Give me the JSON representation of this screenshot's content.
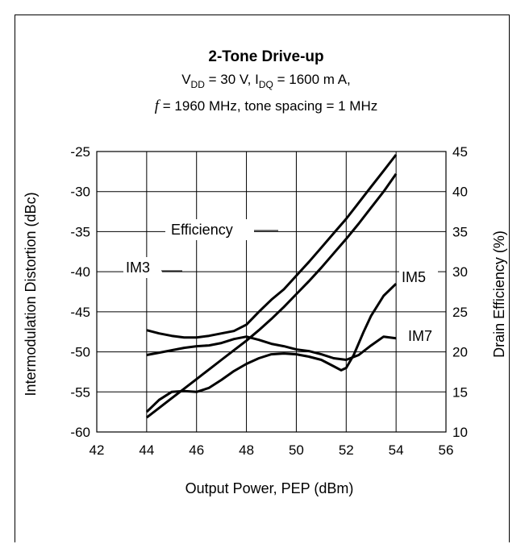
{
  "chart_data": {
    "type": "line",
    "title": "2-Tone Drive-up",
    "subtitle": {
      "line1_parts": [
        "V",
        "DD",
        " = 30 V, I",
        "DQ",
        " = 1600 m A,"
      ],
      "line2_italic": "f",
      "line2_rest": " = 1960 MHz, tone spacing = 1 MHz"
    },
    "xlabel": "Output Power, PEP (dBm)",
    "ylabel_left": "Intermodulation Distortion (dBc)",
    "ylabel_right": "Drain Efficiency (%)",
    "xlim": [
      42,
      56
    ],
    "ylim_left": [
      -60,
      -25
    ],
    "ylim_right": [
      10,
      45
    ],
    "x_ticks": [
      "42",
      "44",
      "46",
      "48",
      "50",
      "52",
      "54",
      "56"
    ],
    "y_ticks_left": [
      "-25",
      "-30",
      "-35",
      "-40",
      "-45",
      "-50",
      "-55",
      "-60"
    ],
    "y_ticks_right": [
      "45",
      "40",
      "35",
      "30",
      "25",
      "20",
      "15",
      "10"
    ],
    "grid": true,
    "series": [
      {
        "name": "IM3",
        "axis": "left",
        "x": [
          44,
          44.5,
          45,
          45.5,
          46,
          46.5,
          47,
          47.5,
          48,
          48.5,
          49,
          49.5,
          50,
          50.5,
          51,
          51.5,
          52,
          52.5,
          53,
          53.5,
          54
        ],
        "y": [
          -47.3,
          -47.7,
          -48.0,
          -48.2,
          -48.2,
          -48.0,
          -47.7,
          -47.4,
          -46.6,
          -45.0,
          -43.5,
          -42.2,
          -40.5,
          -38.8,
          -37.0,
          -35.2,
          -33.4,
          -31.4,
          -29.4,
          -27.4,
          -25.4
        ]
      },
      {
        "name": "IM5",
        "axis": "left",
        "x": [
          44,
          44.5,
          45,
          45.5,
          46,
          46.5,
          47,
          47.5,
          48,
          48.5,
          49,
          49.5,
          50,
          50.5,
          51,
          51.5,
          51.8,
          52,
          52.3,
          52.7,
          53,
          53.5,
          54
        ],
        "y": [
          -57.5,
          -56.0,
          -55.0,
          -54.9,
          -55.0,
          -54.5,
          -53.5,
          -52.4,
          -51.5,
          -50.8,
          -50.3,
          -50.2,
          -50.3,
          -50.6,
          -51.0,
          -51.8,
          -52.3,
          -52.0,
          -50.4,
          -47.5,
          -45.5,
          -43.0,
          -41.5
        ]
      },
      {
        "name": "IM7",
        "axis": "left",
        "x": [
          44,
          44.5,
          45,
          45.5,
          46,
          46.5,
          47,
          47.5,
          48,
          48.5,
          49,
          49.5,
          50,
          50.5,
          51,
          51.5,
          52,
          52.5,
          53,
          53.5,
          54
        ],
        "y": [
          -50.4,
          -50.1,
          -49.8,
          -49.5,
          -49.3,
          -49.2,
          -48.9,
          -48.4,
          -48.1,
          -48.5,
          -49.0,
          -49.3,
          -49.7,
          -49.9,
          -50.3,
          -50.8,
          -51.0,
          -50.4,
          -49.2,
          -48.1,
          -48.3
        ]
      },
      {
        "name": "Efficiency",
        "axis": "right",
        "x": [
          44,
          44.5,
          45,
          45.5,
          46,
          46.5,
          47,
          47.5,
          48,
          48.5,
          49,
          49.5,
          50,
          50.5,
          51,
          51.5,
          52,
          52.5,
          53,
          53.5,
          54
        ],
        "y": [
          11.8,
          13.0,
          14.2,
          15.4,
          16.6,
          17.8,
          19.0,
          20.2,
          21.4,
          22.7,
          24.1,
          25.6,
          27.2,
          28.8,
          30.5,
          32.3,
          34.1,
          36.0,
          38.0,
          40.0,
          42.2
        ]
      }
    ],
    "annotations": {
      "efficiency": "Efficiency",
      "im3": "IM3",
      "im5": "IM5",
      "im7": "IM7"
    }
  }
}
